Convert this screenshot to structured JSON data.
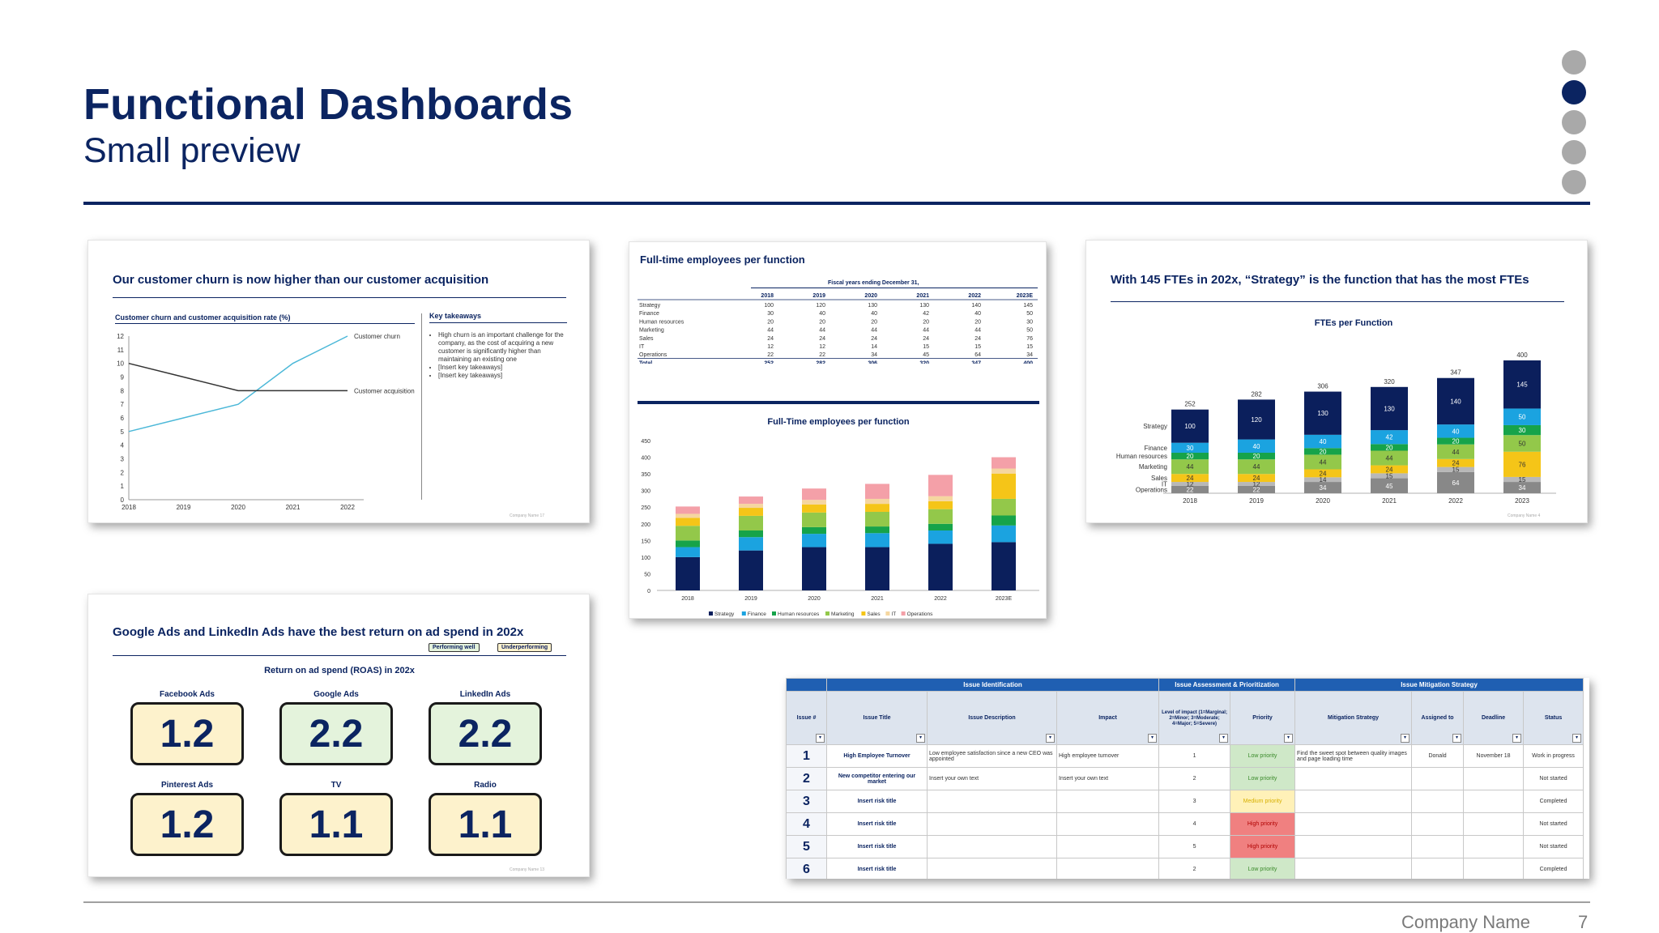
{
  "header": {
    "title": "Functional Dashboards",
    "subtitle": "Small preview"
  },
  "footer": {
    "company": "Company Name",
    "page": "7"
  },
  "nav_dots": {
    "count": 5,
    "active_index": 1
  },
  "card1": {
    "title": "Our customer churn is now higher than our customer acquisition",
    "chart_title": "Customer churn and customer acquisition rate (%)",
    "takeaways_title": "Key takeaways",
    "takeaways": [
      "High churn is an important challenge for the company, as the cost of acquiring a new customer is significantly higher than maintaining an existing one",
      "[Insert key takeaways]",
      "[Insert key takeaways]"
    ],
    "footer": "Company Name     17"
  },
  "card2": {
    "title": "Full-time employees per function",
    "table_caption": "Fiscal years ending December 31,",
    "columns": [
      "2018",
      "2019",
      "2020",
      "2021",
      "2022",
      "2023E"
    ],
    "rows": [
      {
        "label": "Strategy",
        "values": [
          "100",
          "120",
          "130",
          "130",
          "140",
          "145"
        ]
      },
      {
        "label": "Finance",
        "values": [
          "30",
          "40",
          "40",
          "42",
          "40",
          "50"
        ]
      },
      {
        "label": "Human resources",
        "values": [
          "20",
          "20",
          "20",
          "20",
          "20",
          "30"
        ]
      },
      {
        "label": "Marketing",
        "values": [
          "44",
          "44",
          "44",
          "44",
          "44",
          "50"
        ]
      },
      {
        "label": "Sales",
        "values": [
          "24",
          "24",
          "24",
          "24",
          "24",
          "76"
        ]
      },
      {
        "label": "IT",
        "values": [
          "12",
          "12",
          "14",
          "15",
          "15",
          "15"
        ]
      },
      {
        "label": "Operations",
        "values": [
          "22",
          "22",
          "34",
          "45",
          "64",
          "34"
        ]
      }
    ],
    "total": {
      "label": "Total",
      "values": [
        "252",
        "282",
        "306",
        "320",
        "347",
        "400"
      ]
    },
    "chart_title": "Full-Time employees per function"
  },
  "card3": {
    "title": "With 145 FTEs in 202x, “Strategy” is the function that has the most FTEs",
    "chart_title": "FTEs per Function",
    "footer": "Company Name     4"
  },
  "card4": {
    "title": "Google Ads and LinkedIn Ads have the best return on ad spend in 202x",
    "legend_good": "Performing well",
    "legend_bad": "Underperforming",
    "subtitle": "Return on ad spend (ROAS) in 202x",
    "channels": [
      {
        "name": "Facebook Ads",
        "value": "1.2",
        "status": "under"
      },
      {
        "name": "Google Ads",
        "value": "2.2",
        "status": "good"
      },
      {
        "name": "LinkedIn Ads",
        "value": "2.2",
        "status": "good"
      },
      {
        "name": "Pinterest Ads",
        "value": "1.2",
        "status": "under"
      },
      {
        "name": "TV",
        "value": "1.1",
        "status": "under"
      },
      {
        "name": "Radio",
        "value": "1.1",
        "status": "under"
      }
    ],
    "footer": "Company Name     13"
  },
  "card5": {
    "groups": [
      "Issue Identification",
      "Issue Assessment & Prioritization",
      "Issue Mitigation Strategy"
    ],
    "headers": [
      "Issue #",
      "Issue Title",
      "Issue Description",
      "Impact",
      "Level of impact (1=Marginal; 2=Minor; 3=Moderate; 4=Major; 5=Severe)",
      "Priority",
      "Mitigation Strategy",
      "Assigned to",
      "Deadline",
      "Status"
    ],
    "rows": [
      {
        "num": "1",
        "title": "High Employee Turnover",
        "desc": "Low employee satisfaction since a new CEO was appointed",
        "impact": "High employee turnover",
        "level": "1",
        "priority": "Low priority",
        "pclass": "low",
        "strategy": "Find the sweet spot between quality images and page loading time",
        "assigned": "Donald",
        "deadline": "November 18",
        "status": "Work in progress"
      },
      {
        "num": "2",
        "title": "New competitor entering our market",
        "desc": "Insert your own text",
        "impact": "Insert your own text",
        "level": "2",
        "priority": "Low priority",
        "pclass": "low",
        "strategy": "",
        "assigned": "",
        "deadline": "",
        "status": "Not started"
      },
      {
        "num": "3",
        "title": "Insert risk title",
        "desc": "",
        "impact": "",
        "level": "3",
        "priority": "Medium priority",
        "pclass": "med",
        "strategy": "",
        "assigned": "",
        "deadline": "",
        "status": "Completed"
      },
      {
        "num": "4",
        "title": "Insert risk title",
        "desc": "",
        "impact": "",
        "level": "4",
        "priority": "High priority",
        "pclass": "high",
        "strategy": "",
        "assigned": "",
        "deadline": "",
        "status": "Not started"
      },
      {
        "num": "5",
        "title": "Insert risk title",
        "desc": "",
        "impact": "",
        "level": "5",
        "priority": "High priority",
        "pclass": "high",
        "strategy": "",
        "assigned": "",
        "deadline": "",
        "status": "Not started"
      },
      {
        "num": "6",
        "title": "Insert risk title",
        "desc": "",
        "impact": "",
        "level": "2",
        "priority": "Low priority",
        "pclass": "low",
        "strategy": "",
        "assigned": "",
        "deadline": "",
        "status": "Completed"
      }
    ]
  },
  "colors": {
    "navy": "#0b2461",
    "strategy": "#0b1f5c",
    "finance": "#1ba3e0",
    "hr": "#16a34a",
    "marketing": "#93c84a",
    "sales": "#f5c518",
    "it": "#b8b8b8",
    "operations": "#888888",
    "ops_pink": "#f4a0a8"
  },
  "chart_data": [
    {
      "type": "line",
      "title": "Customer churn and customer acquisition rate (%)",
      "x": [
        2018,
        2019,
        2020,
        2021,
        2022
      ],
      "series": [
        {
          "name": "Customer churn",
          "values": [
            5,
            6,
            7,
            10,
            12
          ]
        },
        {
          "name": "Customer acquisition",
          "values": [
            10,
            9,
            8,
            8,
            8
          ]
        }
      ],
      "ylim": [
        0,
        12
      ],
      "yticks": [
        0,
        1,
        2,
        3,
        4,
        5,
        6,
        7,
        8,
        9,
        10,
        11,
        12
      ]
    },
    {
      "type": "bar",
      "stacked": true,
      "title": "Full-Time employees per function",
      "categories": [
        "2018",
        "2019",
        "2020",
        "2021",
        "2022",
        "2023E"
      ],
      "series": [
        {
          "name": "Strategy",
          "values": [
            100,
            120,
            130,
            130,
            140,
            145
          ]
        },
        {
          "name": "Finance",
          "values": [
            30,
            40,
            40,
            42,
            40,
            50
          ]
        },
        {
          "name": "Human resources",
          "values": [
            20,
            20,
            20,
            20,
            20,
            30
          ]
        },
        {
          "name": "Marketing",
          "values": [
            44,
            44,
            44,
            44,
            44,
            50
          ]
        },
        {
          "name": "Sales",
          "values": [
            24,
            24,
            24,
            24,
            24,
            76
          ]
        },
        {
          "name": "IT",
          "values": [
            12,
            12,
            14,
            15,
            15,
            15
          ]
        },
        {
          "name": "Operations",
          "values": [
            22,
            22,
            34,
            45,
            64,
            34
          ]
        }
      ],
      "ylim": [
        0,
        450
      ],
      "yticks": [
        0,
        50,
        100,
        150,
        200,
        250,
        300,
        350,
        400,
        450
      ],
      "legend": "bottom"
    },
    {
      "type": "bar",
      "stacked": true,
      "title": "FTEs per Function",
      "categories": [
        "2018",
        "2019",
        "2020",
        "2021",
        "2022",
        "2023"
      ],
      "series": [
        {
          "name": "Operations",
          "values": [
            22,
            22,
            34,
            45,
            64,
            34
          ]
        },
        {
          "name": "IT",
          "values": [
            12,
            12,
            14,
            15,
            15,
            15
          ]
        },
        {
          "name": "Sales",
          "values": [
            24,
            24,
            24,
            24,
            24,
            76
          ]
        },
        {
          "name": "Marketing",
          "values": [
            44,
            44,
            44,
            44,
            44,
            50
          ]
        },
        {
          "name": "Human resources",
          "values": [
            20,
            20,
            20,
            20,
            20,
            30
          ]
        },
        {
          "name": "Finance",
          "values": [
            30,
            40,
            40,
            42,
            40,
            50
          ]
        },
        {
          "name": "Strategy",
          "values": [
            100,
            120,
            130,
            130,
            140,
            145
          ]
        }
      ],
      "totals": [
        252,
        282,
        306,
        320,
        347,
        400
      ],
      "legend": "left"
    }
  ]
}
